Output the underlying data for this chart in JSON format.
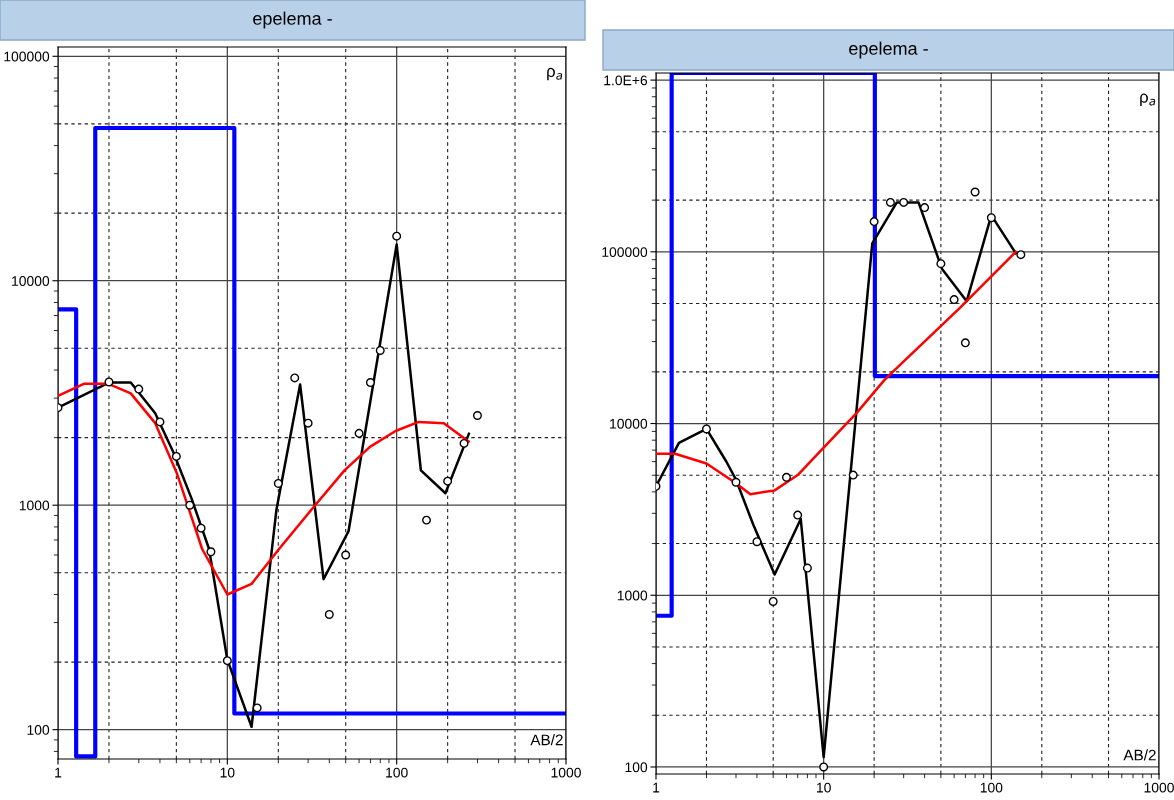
{
  "chart_data": [
    {
      "type": "line",
      "title": "epelema -",
      "xlabel": "AB/2",
      "ylabel": "ρ$_{a}$",
      "log": "xy",
      "grid": true,
      "legend": false,
      "xlim": [
        1,
        1000
      ],
      "xticks": [
        1,
        10,
        100,
        1000
      ],
      "ylim": [
        74,
        110000
      ],
      "yticks": [
        100,
        1000,
        10000,
        100000
      ],
      "series": [
        {
          "type": "step",
          "color": "#0000ff",
          "x": [
            1,
            1.28,
            1.66,
            11,
            1000
          ],
          "values": [
            7460,
            76,
            47900,
            118,
            118
          ]
        },
        {
          "color": "#000000",
          "x": [
            1,
            2,
            2.69,
            3.75,
            4.8,
            6.15,
            7.8,
            10,
            13.9,
            19.5,
            26.9,
            37,
            52,
            100,
            139,
            194,
            267
          ],
          "values": [
            2720,
            3520,
            3520,
            2570,
            1720,
            1070,
            638,
            205,
            103,
            955,
            3450,
            468,
            767,
            14500,
            1430,
            1130,
            2080
          ]
        },
        {
          "color": "#ff0000",
          "x": [
            1,
            1.43,
            1.97,
            2.69,
            3.75,
            5.05,
            7.1,
            10,
            13.9,
            20.2,
            33,
            49.2,
            69.5,
            98.5,
            135,
            190,
            266
          ],
          "values": [
            3070,
            3480,
            3480,
            3150,
            2320,
            1380,
            638,
            400,
            446,
            638,
            1000,
            1430,
            1820,
            2140,
            2350,
            2320,
            1920
          ]
        },
        {
          "type": "scatter",
          "color": "#000000",
          "marker": "circle",
          "x": [
            1,
            2,
            3,
            4,
            5,
            6,
            7,
            8,
            10,
            15,
            20,
            25,
            30,
            40,
            50,
            60,
            70,
            80,
            100,
            150,
            200,
            250,
            300
          ],
          "values": [
            2720,
            3540,
            3290,
            2350,
            1650,
            1000,
            790,
            620,
            203,
            125,
            1250,
            3690,
            2320,
            326,
            600,
            2090,
            3520,
            4890,
            15800,
            858,
            1280,
            1885,
            2510
          ]
        }
      ]
    },
    {
      "type": "line",
      "title": "epelema -",
      "xlabel": "AB/2",
      "ylabel": "ρ$_{a}$",
      "log": "xy",
      "grid": true,
      "legend": false,
      "xlim": [
        1,
        1000
      ],
      "xticks": [
        1,
        10,
        100,
        1000
      ],
      "ylim": [
        91,
        1100000
      ],
      "yticks": [
        100,
        1000,
        10000,
        100000,
        {
          "value": 1000000,
          "label": "1.0E+6"
        }
      ],
      "series": [
        {
          "type": "step",
          "color": "#0000ff",
          "x": [
            1,
            1.24,
            20.2,
            1000
          ],
          "values": [
            760,
            1100000,
            18900,
            18900
          ]
        },
        {
          "color": "#000000",
          "x": [
            1,
            1.37,
            2,
            2.63,
            3,
            3.8,
            5.1,
            7.3,
            10,
            19.5,
            27.3,
            36.8,
            50.7,
            71.3,
            100,
            140
          ],
          "values": [
            4310,
            7710,
            9300,
            5990,
            4710,
            2580,
            1320,
            2780,
            114,
            112000,
            194000,
            194000,
            79800,
            51600,
            163000,
            98000
          ]
        },
        {
          "color": "#ff0000",
          "x": [
            1,
            1.3,
            2,
            3,
            3.65,
            5.1,
            7,
            10,
            15.7,
            23,
            26,
            64.5,
            140
          ],
          "values": [
            6670,
            6670,
            5850,
            4490,
            3880,
            4080,
            5010,
            7240,
            11500,
            17900,
            20100,
            46800,
            100000
          ]
        },
        {
          "type": "scatter",
          "color": "#000000",
          "marker": "circle",
          "x": [
            1,
            2,
            3,
            4,
            5,
            6,
            7,
            8,
            10,
            15,
            20,
            25,
            30,
            40,
            50,
            60,
            70,
            80,
            100,
            150
          ],
          "values": [
            4310,
            9300,
            4550,
            2050,
            920,
            4860,
            2930,
            1440,
            100,
            5010,
            150000,
            194000,
            194000,
            181000,
            85300,
            52700,
            29500,
            223000,
            158000,
            96300
          ]
        }
      ]
    }
  ]
}
